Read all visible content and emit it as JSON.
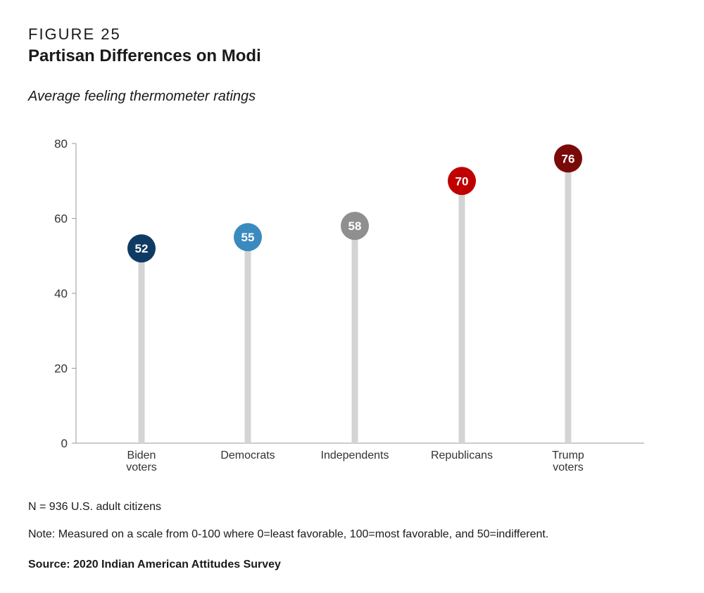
{
  "figure": {
    "label": "FIGURE 25",
    "title": "Partisan Differences on Modi",
    "subtitle": "Average feeling thermometer ratings"
  },
  "chart_data": {
    "type": "lollipop",
    "title": "Partisan Differences on Modi",
    "subtitle": "Average feeling thermometer ratings",
    "xlabel": "",
    "ylabel": "",
    "ylim": [
      0,
      80
    ],
    "yticks": [
      0,
      20,
      40,
      60,
      80
    ],
    "grid": false,
    "categories": [
      [
        "Biden",
        "voters"
      ],
      [
        "Democrats"
      ],
      [
        "Independents"
      ],
      [
        "Republicans"
      ],
      [
        "Trump",
        "voters"
      ]
    ],
    "values": [
      52,
      55,
      58,
      70,
      76
    ],
    "colors": [
      "#0f3a63",
      "#3a8ac0",
      "#8f8f8f",
      "#c00000",
      "#7a0a0a"
    ],
    "stem_color": "#d4d4d4",
    "axis_color": "#9a9a9a"
  },
  "notes": {
    "n": "N = 936 U.S. adult citizens",
    "scale": "Note: Measured on a scale from 0-100 where 0=least favorable, 100=most favorable, and 50=indifferent.",
    "source": "Source: 2020 Indian American Attitudes Survey"
  }
}
